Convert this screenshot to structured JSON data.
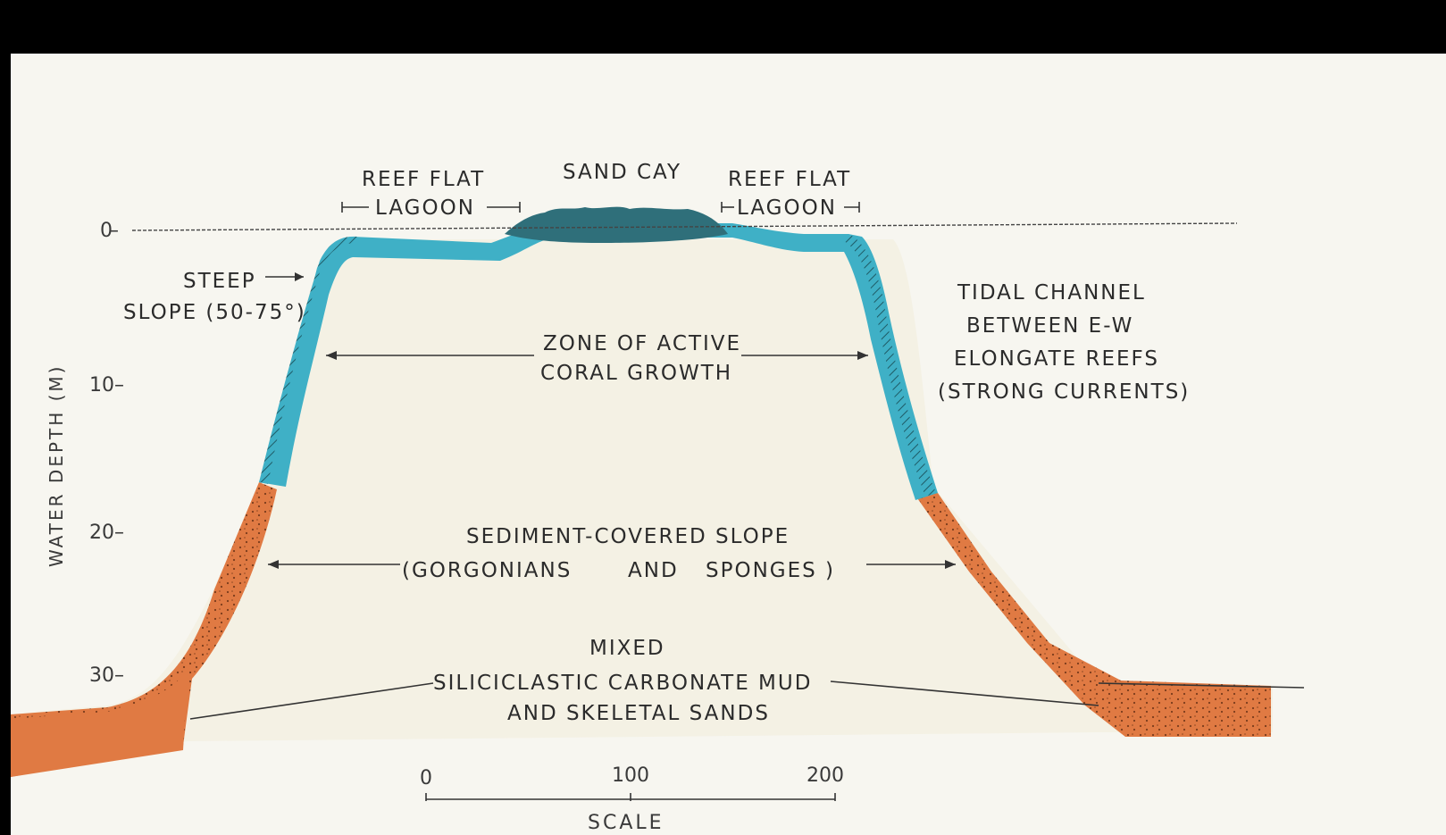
{
  "diagram": {
    "axis": {
      "title": "WATER DEPTH (M)",
      "ticks": [
        "0",
        "10",
        "20",
        "30"
      ]
    },
    "labels": {
      "reef_flat_left": "REEF FLAT",
      "lagoon_left": "LAGOON",
      "sand_cay": "SAND CAY",
      "reef_flat_right": "REEF FLAT",
      "lagoon_right": "LAGOON",
      "steep_slope_line1": "STEEP",
      "steep_slope_line2": "SLOPE (50-75°)",
      "tidal_line1": "TIDAL CHANNEL",
      "tidal_line2": "BETWEEN E-W",
      "tidal_line3": "ELONGATE REEFS",
      "tidal_line4": "(STRONG CURRENTS)",
      "coral_line1": "ZONE OF ACTIVE",
      "coral_line2": "CORAL GROWTH",
      "sediment_line1": "SEDIMENT-COVERED SLOPE",
      "sediment_line2a": "(GORGONIANS",
      "sediment_line2b": "AND",
      "sediment_line2c": "SPONGES )",
      "mixed_line1": "MIXED",
      "mixed_line2": "SILICICLASTIC CARBONATE MUD",
      "mixed_line3": "AND SKELETAL SANDS"
    },
    "scale": {
      "ticks": [
        "0",
        "100",
        "200"
      ],
      "title": "SCALE"
    },
    "colors": {
      "background": "#f7f6f0",
      "frame": "#000000",
      "coral_zone": "#3fb0c6",
      "sediment_slope": "#e07a43",
      "sand_cay": "#2f6f7a",
      "reef_body": "#f4f1e4"
    }
  }
}
